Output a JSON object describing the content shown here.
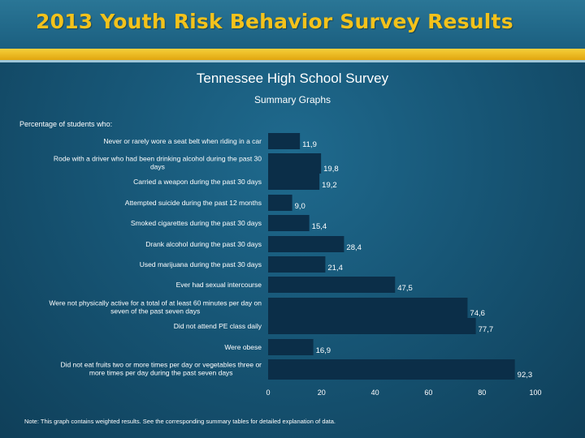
{
  "header": {
    "banner_title": "2013 Youth Risk Behavior Survey Results",
    "survey_title": "Tennessee High School Survey",
    "summary_title": "Summary Graphs",
    "percentage_label": "Percentage of students who:"
  },
  "note": "Note: This graph contains weighted results. See the corresponding summary tables for detailed explanation of data.",
  "colors": {
    "banner_text": "#f3c21b",
    "stripe": "#f6cf3a",
    "bar": "#0b2e48",
    "background": "#175676"
  },
  "chart_data": {
    "type": "bar",
    "orientation": "horizontal",
    "categories": [
      "Never or rarely wore a seat belt when riding in a car",
      "Rode with a driver who had been drinking alcohol during the past 30 days",
      "Carried a weapon during the past 30 days",
      "Attempted suicide during the past 12 months",
      "Smoked cigarettes during the past 30 days",
      "Drank alcohol during the past 30 days",
      "Used marijuana during the past 30 days",
      "Ever had sexual intercourse",
      "Were not physically active for a total of at least 60 minutes per day on seven of the past seven days",
      "Did not attend PE class daily",
      "Were obese",
      "Did not eat fruits two or more times per day or vegetables three or more times per day during the past seven days"
    ],
    "values": [
      11.9,
      19.8,
      19.2,
      9.0,
      15.4,
      28.4,
      21.4,
      47.5,
      74.6,
      77.7,
      16.9,
      92.3
    ],
    "value_labels": [
      "11,9",
      "19,8",
      "19,2",
      "9,0",
      "15,4",
      "28,4",
      "21,4",
      "47,5",
      "74,6",
      "77,7",
      "16,9",
      "92,3"
    ],
    "xlim": [
      0,
      100
    ],
    "xticks": [
      "0",
      "20",
      "40",
      "60",
      "80",
      "100"
    ],
    "grid": false,
    "legend": "none"
  }
}
